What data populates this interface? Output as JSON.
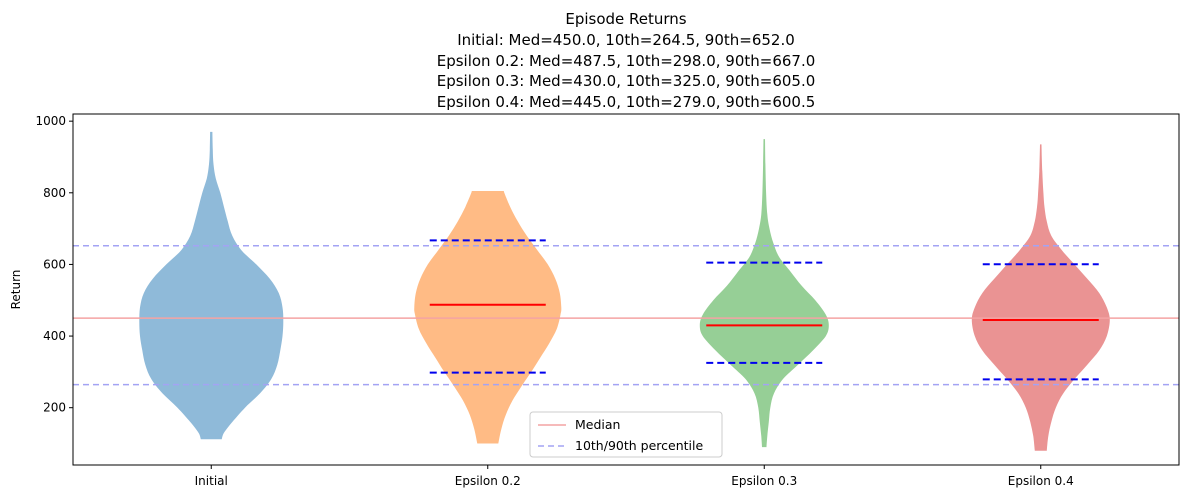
{
  "chart_data": {
    "type": "violin",
    "title_lines": [
      "Episode Returns",
      "Initial: Med=450.0, 10th=264.5, 90th=652.0",
      "Epsilon 0.2: Med=487.5, 10th=298.0, 90th=667.0",
      "Epsilon 0.3: Med=430.0, 10th=325.0, 90th=605.0",
      "Epsilon 0.4: Med=445.0, 10th=279.0, 90th=600.5"
    ],
    "ylabel": "Return",
    "ylim": [
      40,
      1020
    ],
    "yticks": [
      200,
      400,
      600,
      800,
      1000
    ],
    "categories": [
      "Initial",
      "Epsilon 0.2",
      "Epsilon 0.3",
      "Epsilon 0.4"
    ],
    "colors": [
      "#8fbad9",
      "#ffbb85",
      "#96cf96",
      "#ea9393"
    ],
    "series": [
      {
        "min": 112,
        "max": 970,
        "median": 450.0,
        "p10": 264.5,
        "p90": 652.0,
        "show_lines": false,
        "profile": [
          [
            112,
            0.14
          ],
          [
            130,
            0.17
          ],
          [
            160,
            0.28
          ],
          [
            200,
            0.45
          ],
          [
            240,
            0.65
          ],
          [
            280,
            0.8
          ],
          [
            320,
            0.88
          ],
          [
            360,
            0.92
          ],
          [
            400,
            0.95
          ],
          [
            440,
            0.96
          ],
          [
            480,
            0.95
          ],
          [
            520,
            0.9
          ],
          [
            560,
            0.78
          ],
          [
            600,
            0.6
          ],
          [
            640,
            0.4
          ],
          [
            680,
            0.28
          ],
          [
            720,
            0.22
          ],
          [
            760,
            0.17
          ],
          [
            800,
            0.12
          ],
          [
            840,
            0.06
          ],
          [
            880,
            0.03
          ],
          [
            920,
            0.02
          ],
          [
            970,
            0.015
          ]
        ]
      },
      {
        "min": 100,
        "max": 805,
        "median": 487.5,
        "p10": 298.0,
        "p90": 667.0,
        "show_lines": true,
        "profile": [
          [
            100,
            0.14
          ],
          [
            140,
            0.18
          ],
          [
            180,
            0.24
          ],
          [
            220,
            0.33
          ],
          [
            260,
            0.45
          ],
          [
            300,
            0.58
          ],
          [
            340,
            0.7
          ],
          [
            380,
            0.82
          ],
          [
            420,
            0.92
          ],
          [
            460,
            0.97
          ],
          [
            480,
            0.98
          ],
          [
            520,
            0.96
          ],
          [
            560,
            0.9
          ],
          [
            600,
            0.8
          ],
          [
            640,
            0.66
          ],
          [
            680,
            0.52
          ],
          [
            720,
            0.4
          ],
          [
            760,
            0.3
          ],
          [
            800,
            0.22
          ],
          [
            805,
            0.22
          ]
        ]
      },
      {
        "min": 90,
        "max": 950,
        "median": 430.0,
        "p10": 325.0,
        "p90": 605.0,
        "show_lines": true,
        "profile": [
          [
            90,
            0.03
          ],
          [
            120,
            0.04
          ],
          [
            160,
            0.06
          ],
          [
            200,
            0.08
          ],
          [
            240,
            0.13
          ],
          [
            280,
            0.25
          ],
          [
            320,
            0.45
          ],
          [
            360,
            0.65
          ],
          [
            400,
            0.82
          ],
          [
            430,
            0.86
          ],
          [
            460,
            0.82
          ],
          [
            500,
            0.68
          ],
          [
            540,
            0.5
          ],
          [
            580,
            0.35
          ],
          [
            620,
            0.2
          ],
          [
            660,
            0.12
          ],
          [
            700,
            0.07
          ],
          [
            740,
            0.04
          ],
          [
            800,
            0.025
          ],
          [
            880,
            0.015
          ],
          [
            950,
            0.01
          ]
        ]
      },
      {
        "min": 80,
        "max": 935,
        "median": 445.0,
        "p10": 279.0,
        "p90": 600.5,
        "show_lines": true,
        "profile": [
          [
            80,
            0.08
          ],
          [
            120,
            0.1
          ],
          [
            160,
            0.14
          ],
          [
            200,
            0.2
          ],
          [
            240,
            0.3
          ],
          [
            280,
            0.45
          ],
          [
            320,
            0.62
          ],
          [
            360,
            0.78
          ],
          [
            400,
            0.88
          ],
          [
            445,
            0.92
          ],
          [
            480,
            0.88
          ],
          [
            520,
            0.78
          ],
          [
            560,
            0.62
          ],
          [
            600,
            0.45
          ],
          [
            640,
            0.28
          ],
          [
            680,
            0.14
          ],
          [
            720,
            0.08
          ],
          [
            760,
            0.05
          ],
          [
            800,
            0.035
          ],
          [
            860,
            0.02
          ],
          [
            935,
            0.01
          ]
        ]
      }
    ],
    "reference_lines": {
      "median": 450.0,
      "p10": 264.5,
      "p90": 652.0
    },
    "legend": {
      "position": "lower-center",
      "entries": [
        {
          "label": "Median",
          "color": "#f4a3a3",
          "style": "solid"
        },
        {
          "label": "10th/90th percentile",
          "color": "#a3a3f4",
          "style": "dashed"
        }
      ]
    }
  }
}
